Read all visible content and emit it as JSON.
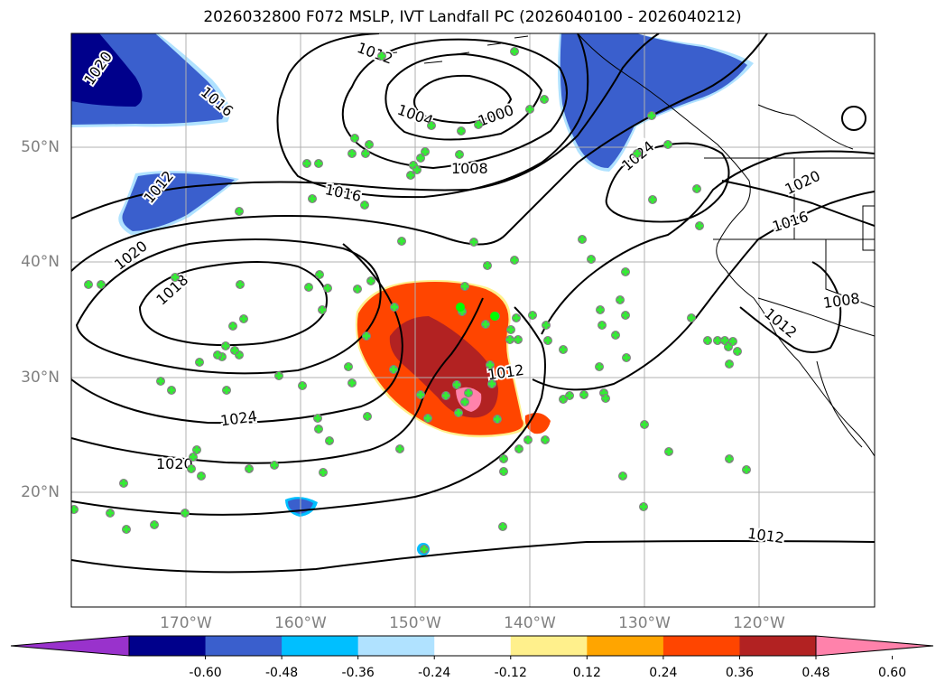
{
  "title": "2026032800 F072 MSLP, IVT Landfall PC (2026040100 - 2026040212)",
  "lat_labels": [
    "50°N",
    "40°N",
    "30°N",
    "20°N"
  ],
  "lon_labels": [
    "170°W",
    "160°W",
    "150°W",
    "140°W",
    "130°W",
    "120°W"
  ],
  "isobar_labels": [
    "1020",
    "1016",
    "1012",
    "1020",
    "1018",
    "1012",
    "1004",
    "1000",
    "1008",
    "1016",
    "1024",
    "1020",
    "1016",
    "1008",
    "1012",
    "1012",
    "1024",
    "1020",
    "1012"
  ],
  "colorbar": {
    "colors": [
      "#9932cc",
      "#00008b",
      "#3a5fcd",
      "#00bfff",
      "#b0e2ff",
      "#ffffff",
      "#fff08c",
      "#ffa500",
      "#ff4500",
      "#b22222",
      "#ff82ab"
    ],
    "ticks": [
      "-0.60",
      "-0.48",
      "-0.36",
      "-0.24",
      "-0.12",
      "0.12",
      "0.24",
      "0.36",
      "0.48",
      "0.60"
    ]
  },
  "marker_colors": {
    "fill": "#33ee33",
    "ring": "#808080",
    "highlight": "#00ff00"
  }
}
